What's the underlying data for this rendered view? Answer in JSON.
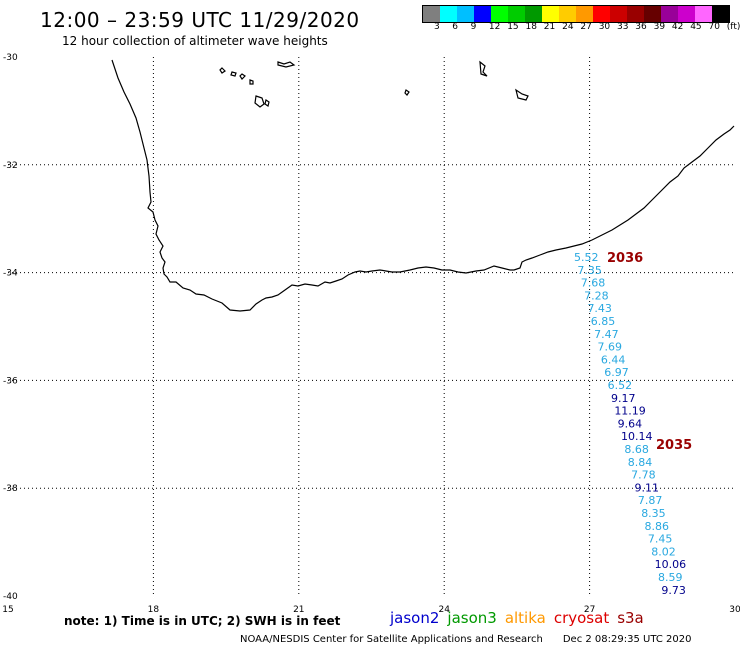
{
  "header": {
    "title": "12:00 – 23:59 UTC 11/29/2020",
    "subtitle": "12 hour collection of altimeter wave heights"
  },
  "colorbar": {
    "colors": [
      "#7f7f7f",
      "#00ffff",
      "#00bfff",
      "#0000ff",
      "#00ff00",
      "#00cc00",
      "#009900",
      "#ffff00",
      "#ffcc00",
      "#ff9900",
      "#ff0000",
      "#cc0000",
      "#990000",
      "#660000",
      "#990099",
      "#cc00cc",
      "#ff66ff",
      "#000000"
    ],
    "labels": [
      "3",
      "6",
      "9",
      "12",
      "15",
      "18",
      "21",
      "24",
      "27",
      "30",
      "33",
      "36",
      "39",
      "42",
      "45",
      "70",
      "(ft)"
    ]
  },
  "map": {
    "lon_range": [
      15,
      30
    ],
    "lat_range": [
      -40,
      -30
    ],
    "lon_ticks": [
      "15",
      "18",
      "21",
      "24",
      "27",
      "30"
    ],
    "lat_ticks": [
      "-30",
      "-32",
      "-34",
      "-36",
      "-38",
      "-40"
    ],
    "grid": true
  },
  "track": {
    "time_labels": [
      {
        "text": "2036",
        "color": "#990000"
      },
      {
        "text": "2035",
        "color": "#990000"
      }
    ],
    "readings": [
      {
        "v": "5.52",
        "c": "#29a8e0"
      },
      {
        "v": "7.35",
        "c": "#29a8e0"
      },
      {
        "v": "7.68",
        "c": "#29a8e0"
      },
      {
        "v": "7.28",
        "c": "#29a8e0"
      },
      {
        "v": "7.43",
        "c": "#29a8e0"
      },
      {
        "v": "6.85",
        "c": "#29a8e0"
      },
      {
        "v": "7.47",
        "c": "#29a8e0"
      },
      {
        "v": "7.69",
        "c": "#29a8e0"
      },
      {
        "v": "6.44",
        "c": "#29a8e0"
      },
      {
        "v": "6.97",
        "c": "#29a8e0"
      },
      {
        "v": "6.52",
        "c": "#29a8e0"
      },
      {
        "v": "9.17",
        "c": "#00008b"
      },
      {
        "v": "11.19",
        "c": "#00008b"
      },
      {
        "v": "9.64",
        "c": "#00008b"
      },
      {
        "v": "10.14",
        "c": "#00008b"
      },
      {
        "v": "8.68",
        "c": "#29a8e0"
      },
      {
        "v": "8.84",
        "c": "#29a8e0"
      },
      {
        "v": "7.78",
        "c": "#29a8e0"
      },
      {
        "v": "9.11",
        "c": "#00008b"
      },
      {
        "v": "7.87",
        "c": "#29a8e0"
      },
      {
        "v": "8.35",
        "c": "#29a8e0"
      },
      {
        "v": "8.86",
        "c": "#29a8e0"
      },
      {
        "v": "7.45",
        "c": "#29a8e0"
      },
      {
        "v": "8.02",
        "c": "#29a8e0"
      },
      {
        "v": "10.06",
        "c": "#00008b"
      },
      {
        "v": "8.59",
        "c": "#29a8e0"
      },
      {
        "v": "9.73",
        "c": "#00008b"
      }
    ]
  },
  "footer": {
    "note": "note:  1) Time is in UTC;  2) SWH is in feet",
    "legend": [
      {
        "name": "jason2",
        "color": "#0000cc"
      },
      {
        "name": "jason3",
        "color": "#009900"
      },
      {
        "name": "altika",
        "color": "#ff9900"
      },
      {
        "name": "cryosat",
        "color": "#dd0000"
      },
      {
        "name": "s3a",
        "color": "#990000"
      }
    ],
    "credit": "NOAA/NESDIS Center for Satellite Applications and Research",
    "timestamp": "Dec  2 08:29:35 UTC 2020"
  }
}
